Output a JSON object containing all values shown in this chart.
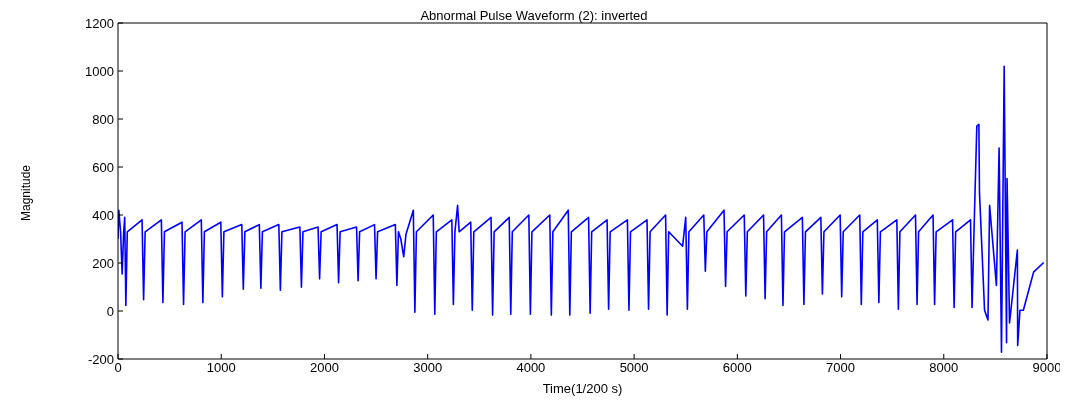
{
  "chart_data": {
    "type": "line",
    "title": "Abnormal Pulse Waveform (2): inverted",
    "xlabel": "Time(1/200 s)",
    "ylabel": "Magnitude",
    "xlim": [
      0,
      9000
    ],
    "xticks": [
      0,
      1000,
      2000,
      3000,
      4000,
      5000,
      6000,
      7000,
      8000,
      9000
    ],
    "ylim": [
      -200,
      1200
    ],
    "yticks": [
      -200,
      0,
      200,
      400,
      600,
      800,
      1000,
      1200
    ],
    "grid": false,
    "legend": false,
    "marker": "none",
    "line_style": "solid",
    "series": [
      {
        "color": "#0000ff",
        "x": [
          0,
          8,
          25,
          40,
          55,
          65,
          76,
          90,
          233,
          248,
          263,
          420,
          435,
          450,
          620,
          635,
          650,
          807,
          822,
          837,
          996,
          1011,
          1026,
          1199,
          1214,
          1229,
          1369,
          1384,
          1399,
          1558,
          1573,
          1588,
          1762,
          1777,
          1792,
          1938,
          1953,
          1968,
          2122,
          2137,
          2152,
          2311,
          2326,
          2341,
          2485,
          2500,
          2515,
          2687,
          2702,
          2717,
          2740,
          2768,
          2790,
          2861,
          2876,
          2891,
          3054,
          3069,
          3084,
          3234,
          3249,
          3264,
          3290,
          3305,
          3417,
          3432,
          3447,
          3614,
          3629,
          3644,
          3790,
          3805,
          3820,
          3980,
          3995,
          4010,
          4183,
          4198,
          4213,
          4362,
          4377,
          4392,
          4559,
          4574,
          4589,
          4738,
          4753,
          4768,
          4935,
          4950,
          4965,
          5125,
          5140,
          5155,
          5305,
          5320,
          5335,
          5470,
          5500,
          5516,
          5531,
          5675,
          5690,
          5705,
          5871,
          5886,
          5901,
          6067,
          6082,
          6097,
          6254,
          6269,
          6284,
          6427,
          6442,
          6457,
          6630,
          6645,
          6660,
          6809,
          6824,
          6839,
          6996,
          7011,
          7026,
          7186,
          7201,
          7216,
          7356,
          7371,
          7386,
          7545,
          7560,
          7575,
          7726,
          7741,
          7756,
          7896,
          7911,
          7926,
          8085,
          8100,
          8115,
          8259,
          8274,
          8297,
          8320,
          8340,
          8346,
          8395,
          8428,
          8444,
          8510,
          8536,
          8559,
          8585,
          8608,
          8613,
          8637,
          8713,
          8716,
          8738,
          8771,
          8821,
          8870,
          8968
        ],
        "values": [
          300,
          420,
          330,
          154,
          330,
          390,
          23,
          330,
          380,
          47,
          330,
          380,
          35,
          330,
          370,
          27,
          330,
          380,
          35,
          330,
          370,
          59,
          330,
          360,
          91,
          330,
          360,
          95,
          330,
          360,
          87,
          330,
          350,
          99,
          330,
          350,
          134,
          330,
          360,
          118,
          330,
          350,
          126,
          330,
          360,
          134,
          330,
          360,
          106,
          330,
          300,
          226,
          320,
          420,
          -5,
          330,
          400,
          -13,
          330,
          380,
          27,
          330,
          440,
          330,
          370,
          3,
          330,
          390,
          -17,
          330,
          390,
          -13,
          330,
          400,
          -13,
          330,
          400,
          -17,
          330,
          420,
          -17,
          330,
          390,
          -9,
          330,
          380,
          7,
          330,
          380,
          3,
          330,
          380,
          7,
          330,
          400,
          -17,
          330,
          270,
          390,
          7,
          330,
          400,
          166,
          330,
          420,
          102,
          330,
          400,
          63,
          330,
          400,
          51,
          330,
          400,
          23,
          330,
          390,
          27,
          330,
          390,
          71,
          330,
          400,
          59,
          330,
          400,
          27,
          330,
          380,
          35,
          330,
          380,
          7,
          330,
          400,
          27,
          330,
          400,
          27,
          330,
          380,
          15,
          330,
          380,
          15,
          401,
          770,
          778,
          492,
          3,
          -37,
          440,
          106,
          679,
          -172,
          1020,
          -132,
          552,
          -50,
          254,
          -144,
          3,
          3,
          83,
          162,
          202
        ]
      }
    ]
  }
}
